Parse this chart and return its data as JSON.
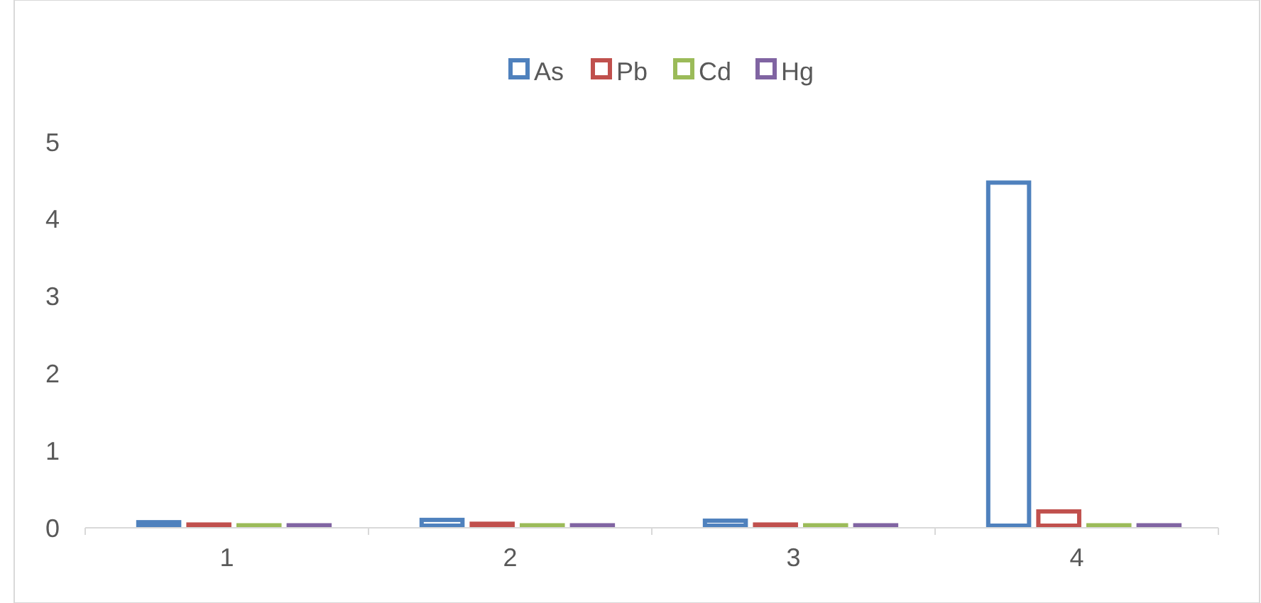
{
  "chart_data": {
    "type": "bar",
    "categories": [
      "1",
      "2",
      "3",
      "4"
    ],
    "series": [
      {
        "name": "As",
        "color": "#4f81bd",
        "values": [
          0.1,
          0.13,
          0.12,
          4.5
        ]
      },
      {
        "name": "Pb",
        "color": "#c0504d",
        "values": [
          0.07,
          0.08,
          0.07,
          0.24
        ]
      },
      {
        "name": "Cd",
        "color": "#9bbb59",
        "values": [
          0.06,
          0.06,
          0.06,
          0.06
        ]
      },
      {
        "name": "Hg",
        "color": "#8064a2",
        "values": [
          0.06,
          0.06,
          0.06,
          0.06
        ]
      }
    ],
    "ylim": [
      0,
      5
    ],
    "yticks": [
      0,
      1,
      2,
      3,
      4,
      5
    ],
    "grid": false,
    "legend": "top"
  }
}
